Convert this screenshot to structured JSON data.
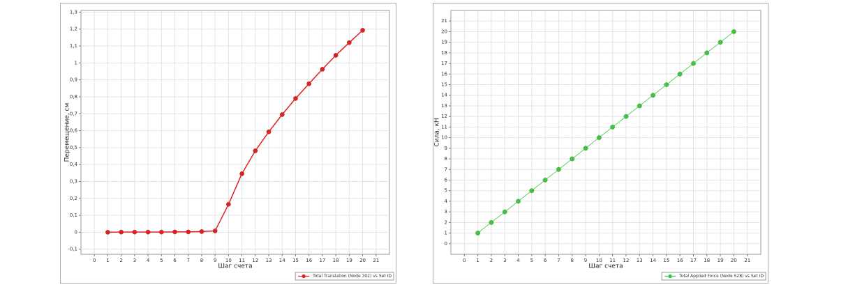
{
  "chart_data": [
    {
      "type": "line",
      "xlabel": "Шаг счета",
      "ylabel": "Перемещение, см",
      "x": [
        1,
        2,
        3,
        4,
        5,
        6,
        7,
        8,
        9,
        10,
        11,
        12,
        13,
        14,
        15,
        16,
        17,
        18,
        19,
        20
      ],
      "series": [
        {
          "name": "Total Translation (Node 302) vs Set ID",
          "color": "#e02020",
          "values": [
            0,
            0.001,
            0.001,
            0.001,
            0.001,
            0.002,
            0.002,
            0.004,
            0.008,
            0.165,
            0.346,
            0.481,
            0.593,
            0.695,
            0.79,
            0.877,
            0.963,
            1.045,
            1.12,
            1.193
          ]
        }
      ],
      "xlim": [
        -1,
        22
      ],
      "xticks": [
        0,
        1,
        2,
        3,
        4,
        5,
        6,
        7,
        8,
        9,
        10,
        11,
        12,
        13,
        14,
        15,
        16,
        17,
        18,
        19,
        20,
        21
      ],
      "ylim": [
        -0.13,
        1.31
      ],
      "yticks": [
        {
          "value": -0.1,
          "label": "-0,1"
        },
        0,
        {
          "value": 0.1,
          "label": "0,1"
        },
        {
          "value": 0.2,
          "label": "0,2"
        },
        {
          "value": 0.3,
          "label": "0,3"
        },
        {
          "value": 0.4,
          "label": "0,4"
        },
        {
          "value": 0.5,
          "label": "0,5"
        },
        {
          "value": 0.6,
          "label": "0,6"
        },
        {
          "value": 0.7,
          "label": "0,7"
        },
        {
          "value": 0.8,
          "label": "0,8"
        },
        {
          "value": 0.9,
          "label": "0,9"
        },
        1,
        {
          "value": 1.1,
          "label": "1,1"
        },
        {
          "value": 1.2,
          "label": "1,2"
        },
        {
          "value": 1.3,
          "label": "1,3"
        }
      ],
      "grid": true,
      "legend": "bottom-right"
    },
    {
      "type": "line",
      "xlabel": "Шаг счета",
      "ylabel": "Сила, кН",
      "x": [
        1,
        2,
        3,
        4,
        5,
        6,
        7,
        8,
        9,
        10,
        11,
        12,
        13,
        14,
        15,
        16,
        17,
        18,
        19,
        20
      ],
      "series": [
        {
          "name": "Total Applied Force (Node 528) vs Set ID",
          "color": "#3cc83c",
          "values": [
            1,
            2,
            3,
            4,
            5,
            6,
            7,
            8,
            9,
            10,
            11,
            12,
            13,
            14,
            15,
            16,
            17,
            18,
            19,
            20
          ]
        }
      ],
      "xlim": [
        -1,
        22
      ],
      "xticks": [
        0,
        1,
        2,
        3,
        4,
        5,
        6,
        7,
        8,
        9,
        10,
        11,
        12,
        13,
        14,
        15,
        16,
        17,
        18,
        19,
        20,
        21
      ],
      "ylim": [
        -1,
        22
      ],
      "yticks": [
        0,
        1,
        2,
        3,
        4,
        5,
        6,
        7,
        8,
        9,
        10,
        11,
        12,
        13,
        14,
        15,
        16,
        17,
        18,
        19,
        20,
        21
      ],
      "grid": true,
      "legend": "bottom-right"
    }
  ]
}
